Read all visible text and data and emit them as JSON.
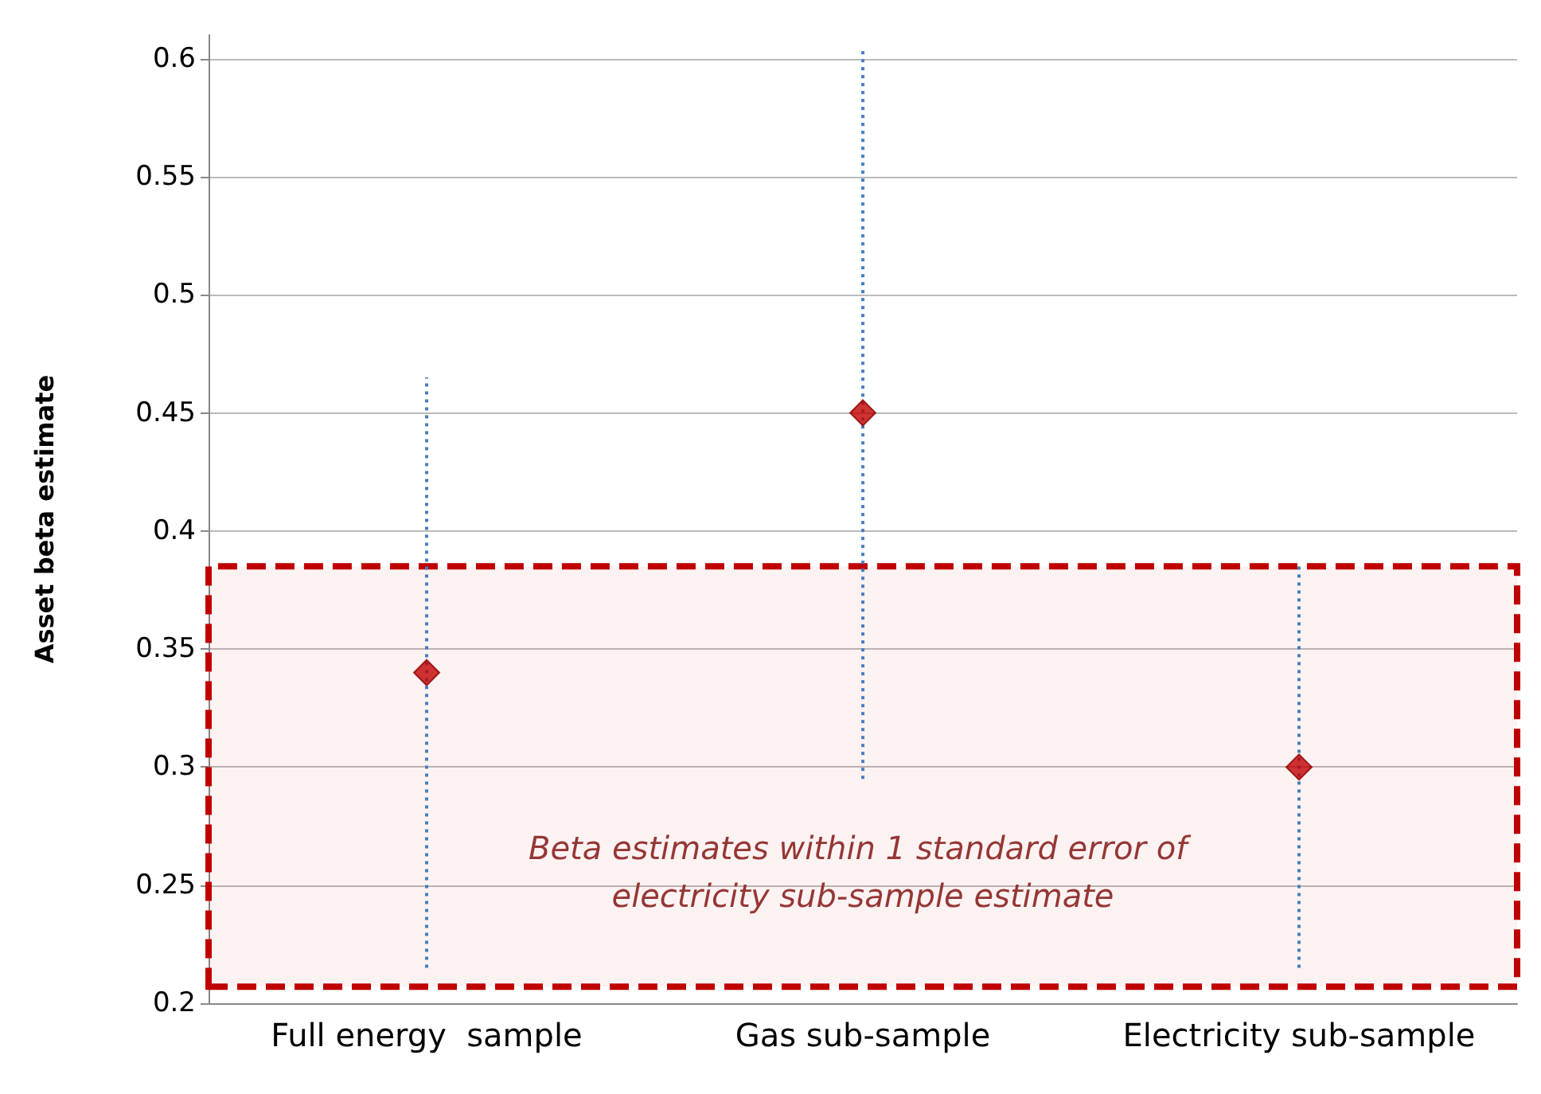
{
  "chart_data": {
    "type": "scatter",
    "ylabel": "Asset beta estimate",
    "categories": [
      "Full energy  sample",
      "Gas sub-sample",
      "Electricity sub-sample"
    ],
    "series": [
      {
        "color": "#c00000",
        "values": [
          0.34,
          0.45,
          0.3
        ],
        "errors": [
          0.125,
          0.155,
          0.085
        ]
      }
    ],
    "ylim": [
      0.2,
      0.61
    ],
    "yticks": [
      0.2,
      0.25,
      0.3,
      0.35,
      0.4,
      0.45,
      0.5,
      0.55,
      0.6
    ],
    "grid": "y",
    "marker": "diamond",
    "legend": false,
    "bands": [
      {
        "axis": "y",
        "from": 0.207,
        "to": 0.385,
        "label": "Beta estimates within 1 standard error of electricity sub-sample estimate",
        "color": "#c00000"
      }
    ]
  }
}
